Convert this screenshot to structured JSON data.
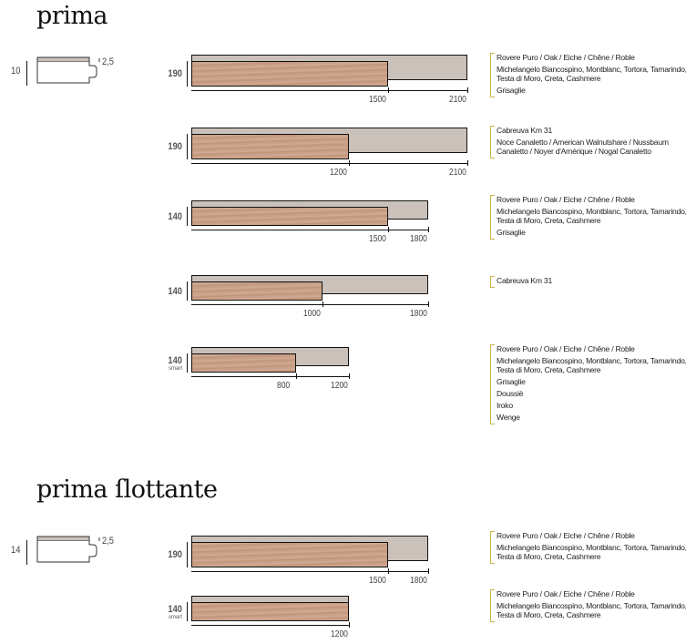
{
  "sections": [
    {
      "title": "prima",
      "thickness": "10",
      "wear_layer": "2,5",
      "rows": [
        {
          "width": "190",
          "sub": "",
          "min_length": 1500,
          "max_length": 2100,
          "min_label": "1500",
          "max_label": "2100",
          "species": [
            "Rovere Puro / Oak / Eiche / Chêne / Roble",
            "Michelangelo Biancospino, Montblanc, Tortora, Tamarindo,\nTesta di Moro, Creta, Cashmere",
            "Grisaglie"
          ]
        },
        {
          "width": "190",
          "sub": "",
          "min_length": 1200,
          "max_length": 2100,
          "min_label": "1200",
          "max_label": "2100",
          "species": [
            "Cabreuva Km 31",
            "Noce Canaletto / American Walnutshare / Nussbaum\nCanaletto / Noyer d'Amérique / Nogal Canaletto"
          ]
        },
        {
          "width": "140",
          "sub": "",
          "min_length": 1500,
          "max_length": 1800,
          "min_label": "1500",
          "max_label": "1800",
          "species": [
            "Rovere Puro / Oak / Eiche / Chêne / Roble",
            "Michelangelo Biancospino, Montblanc, Tortora, Tamarindo,\nTesta di Moro, Creta, Cashmere",
            "Grisaglie"
          ]
        },
        {
          "width": "140",
          "sub": "",
          "min_length": 1000,
          "max_length": 1800,
          "min_label": "1000",
          "max_label": "1800",
          "species": [
            "Cabreuva Km 31"
          ]
        },
        {
          "width": "140",
          "sub": "smart",
          "min_length": 800,
          "max_length": 1200,
          "min_label": "800",
          "max_label": "1200",
          "species": [
            "Rovere Puro / Oak / Eiche / Chêne / Roble",
            "Michelangelo Biancospino, Montblanc, Tortora, Tamarindo,\nTesta di Moro, Creta, Cashmere",
            "Grisaglie",
            "Doussiè",
            "Iroko",
            "Wenge"
          ]
        }
      ]
    },
    {
      "title": "prima ſlottante",
      "thickness": "14",
      "wear_layer": "2,5",
      "rows": [
        {
          "width": "190",
          "sub": "",
          "min_length": 1500,
          "max_length": 1800,
          "min_label": "1500",
          "max_label": "1800",
          "species": [
            "Rovere Puro / Oak / Eiche / Chêne / Roble",
            "Michelangelo Biancospino, Montblanc, Tortora, Tamarindo,\nTesta di Moro, Creta, Cashmere"
          ]
        },
        {
          "width": "140",
          "sub": "smart",
          "min_length": 1200,
          "max_length": 1200,
          "min_label": "",
          "max_label": "1200",
          "species": [
            "Rovere Puro / Oak / Eiche / Chêne / Roble",
            "Michelangelo Biancospino, Montblanc, Tortora, Tamarindo,\nTesta di Moro, Creta, Cashmere"
          ]
        }
      ]
    }
  ],
  "colors": {
    "board_gray": "#cbc1bb",
    "wood": "#c69d84",
    "bracket": "#c9b54a"
  }
}
